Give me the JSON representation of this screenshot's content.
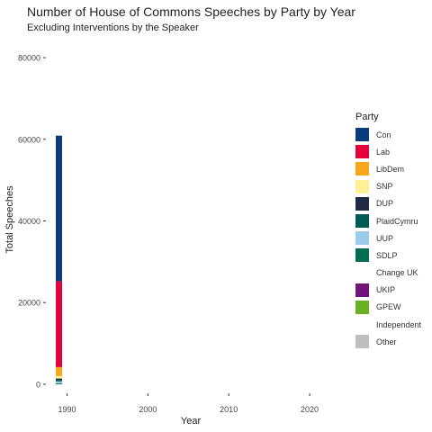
{
  "chart_data": {
    "type": "bar",
    "stacked": true,
    "title": "Number of House of Commons Speeches by Party by Year",
    "subtitle": "Excluding Interventions by the Speaker",
    "xlabel": "Year",
    "ylabel": "Total Speeches",
    "xlim": [
      1987.5,
      2024
    ],
    "ylim": [
      -2000,
      82000
    ],
    "x_ticks": [
      1990,
      2000,
      2010,
      2020
    ],
    "y_ticks": [
      0,
      20000,
      40000,
      60000,
      80000
    ],
    "grid": false,
    "legend_title": "Party",
    "legend_position": "right",
    "categories": [
      1989
    ],
    "series": [
      {
        "name": "Other",
        "color": "#BEBEBE",
        "values": [
          0
        ]
      },
      {
        "name": "Independent",
        "color": "#FFFFFF",
        "values": [
          0
        ]
      },
      {
        "name": "GPEW",
        "color": "#6AB023",
        "values": [
          0
        ]
      },
      {
        "name": "UKIP",
        "color": "#70147A",
        "values": [
          0
        ]
      },
      {
        "name": "Change UK",
        "color": "#FFFFFF",
        "values": [
          0
        ]
      },
      {
        "name": "SDLP",
        "color": "#006E51",
        "values": [
          200
        ]
      },
      {
        "name": "UUP",
        "color": "#9BCBEB",
        "values": [
          500
        ]
      },
      {
        "name": "PlaidCymru",
        "color": "#005B54",
        "values": [
          300
        ]
      },
      {
        "name": "DUP",
        "color": "#1F2A44",
        "values": [
          400
        ]
      },
      {
        "name": "SNP",
        "color": "#FFF095",
        "values": [
          600
        ]
      },
      {
        "name": "LibDem",
        "color": "#FAA61A",
        "values": [
          2200
        ]
      },
      {
        "name": "Lab",
        "color": "#E4003B",
        "values": [
          21000
        ]
      },
      {
        "name": "Con",
        "color": "#0A3B7C",
        "values": [
          35700
        ]
      }
    ],
    "legend_order": [
      "Con",
      "Lab",
      "LibDem",
      "SNP",
      "DUP",
      "PlaidCymru",
      "UUP",
      "SDLP",
      "Change UK",
      "UKIP",
      "GPEW",
      "Independent",
      "Other"
    ]
  }
}
